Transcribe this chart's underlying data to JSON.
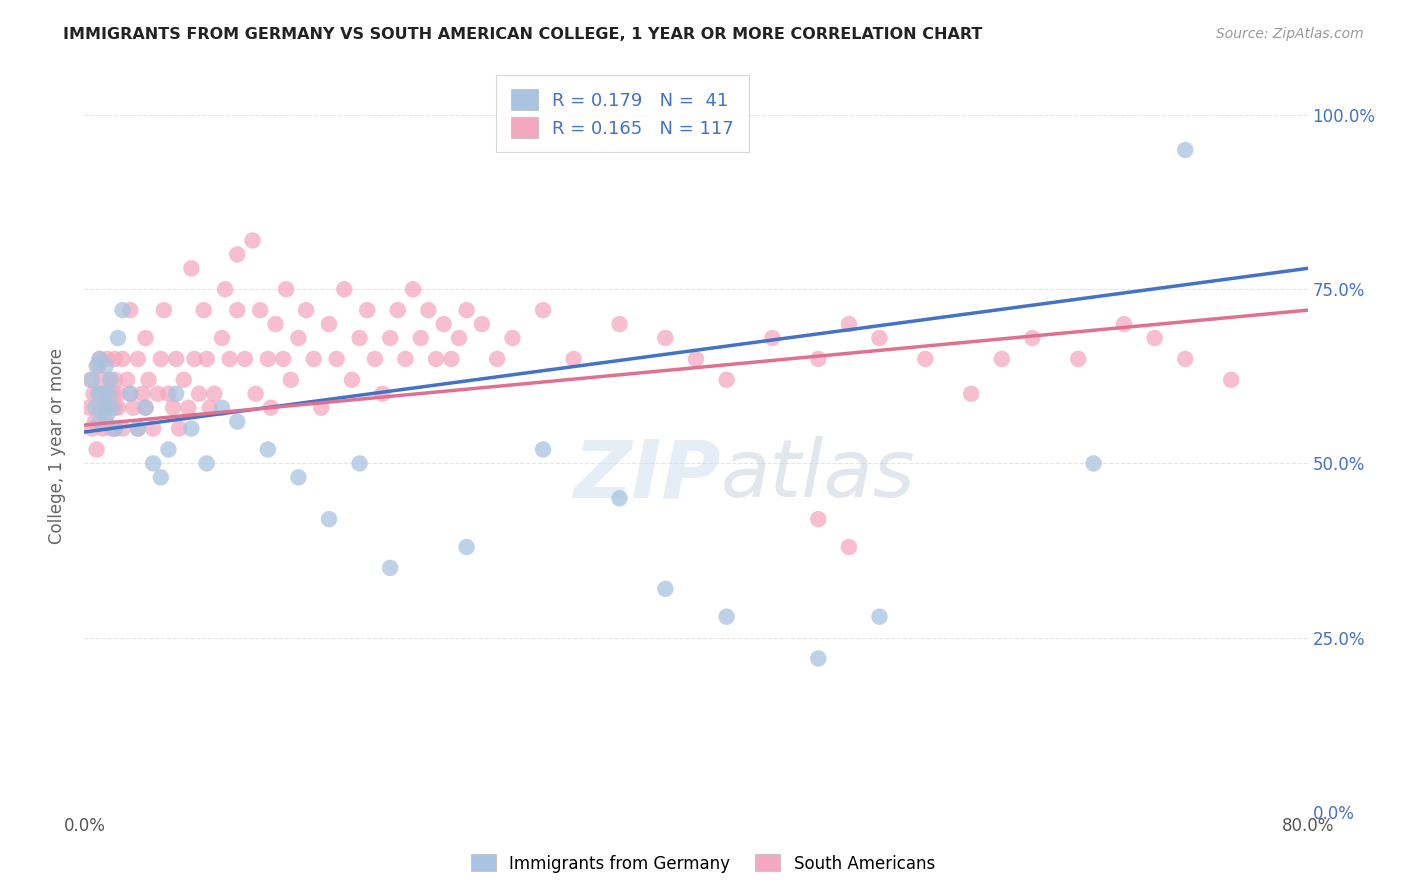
{
  "title": "IMMIGRANTS FROM GERMANY VS SOUTH AMERICAN COLLEGE, 1 YEAR OR MORE CORRELATION CHART",
  "source": "Source: ZipAtlas.com",
  "ylabel": "College, 1 year or more",
  "r_germany": 0.179,
  "n_germany": 41,
  "r_south_american": 0.165,
  "n_south_american": 117,
  "germany_color": "#a8c4e0",
  "south_american_color": "#f4a8c0",
  "germany_line_color": "#4472c4",
  "south_american_line_color": "#e07090",
  "background_color": "#ffffff",
  "xlim": [
    0.0,
    0.8
  ],
  "ylim": [
    0.0,
    1.05
  ],
  "germany_x": [
    0.005,
    0.007,
    0.008,
    0.009,
    0.01,
    0.01,
    0.012,
    0.013,
    0.014,
    0.015,
    0.016,
    0.017,
    0.018,
    0.02,
    0.022,
    0.025,
    0.03,
    0.035,
    0.04,
    0.045,
    0.05,
    0.055,
    0.06,
    0.07,
    0.08,
    0.09,
    0.1,
    0.12,
    0.14,
    0.16,
    0.18,
    0.2,
    0.25,
    0.3,
    0.35,
    0.38,
    0.42,
    0.48,
    0.52,
    0.66,
    0.72
  ],
  "germany_y": [
    0.62,
    0.58,
    0.64,
    0.6,
    0.56,
    0.65,
    0.6,
    0.58,
    0.64,
    0.57,
    0.6,
    0.62,
    0.58,
    0.55,
    0.68,
    0.72,
    0.6,
    0.55,
    0.58,
    0.5,
    0.48,
    0.52,
    0.6,
    0.55,
    0.5,
    0.58,
    0.56,
    0.52,
    0.48,
    0.42,
    0.5,
    0.35,
    0.38,
    0.52,
    0.45,
    0.32,
    0.28,
    0.22,
    0.28,
    0.5,
    0.95
  ],
  "south_american_x": [
    0.003,
    0.004,
    0.005,
    0.006,
    0.007,
    0.008,
    0.009,
    0.01,
    0.01,
    0.01,
    0.012,
    0.012,
    0.013,
    0.014,
    0.015,
    0.015,
    0.016,
    0.017,
    0.018,
    0.019,
    0.02,
    0.02,
    0.02,
    0.02,
    0.022,
    0.022,
    0.025,
    0.025,
    0.028,
    0.03,
    0.03,
    0.032,
    0.035,
    0.035,
    0.038,
    0.04,
    0.04,
    0.042,
    0.045,
    0.048,
    0.05,
    0.052,
    0.055,
    0.058,
    0.06,
    0.062,
    0.065,
    0.068,
    0.07,
    0.072,
    0.075,
    0.078,
    0.08,
    0.082,
    0.085,
    0.09,
    0.092,
    0.095,
    0.1,
    0.1,
    0.105,
    0.11,
    0.112,
    0.115,
    0.12,
    0.122,
    0.125,
    0.13,
    0.132,
    0.135,
    0.14,
    0.145,
    0.15,
    0.155,
    0.16,
    0.165,
    0.17,
    0.175,
    0.18,
    0.185,
    0.19,
    0.195,
    0.2,
    0.205,
    0.21,
    0.215,
    0.22,
    0.225,
    0.23,
    0.235,
    0.24,
    0.245,
    0.25,
    0.26,
    0.27,
    0.28,
    0.3,
    0.32,
    0.35,
    0.38,
    0.4,
    0.42,
    0.45,
    0.48,
    0.5,
    0.52,
    0.55,
    0.58,
    0.6,
    0.62,
    0.65,
    0.68,
    0.7,
    0.72,
    0.75,
    0.48,
    0.5
  ],
  "south_american_y": [
    0.58,
    0.62,
    0.55,
    0.6,
    0.56,
    0.52,
    0.64,
    0.58,
    0.65,
    0.6,
    0.55,
    0.62,
    0.58,
    0.56,
    0.6,
    0.65,
    0.58,
    0.62,
    0.55,
    0.6,
    0.58,
    0.65,
    0.55,
    0.62,
    0.6,
    0.58,
    0.65,
    0.55,
    0.62,
    0.6,
    0.72,
    0.58,
    0.65,
    0.55,
    0.6,
    0.68,
    0.58,
    0.62,
    0.55,
    0.6,
    0.65,
    0.72,
    0.6,
    0.58,
    0.65,
    0.55,
    0.62,
    0.58,
    0.78,
    0.65,
    0.6,
    0.72,
    0.65,
    0.58,
    0.6,
    0.68,
    0.75,
    0.65,
    0.8,
    0.72,
    0.65,
    0.82,
    0.6,
    0.72,
    0.65,
    0.58,
    0.7,
    0.65,
    0.75,
    0.62,
    0.68,
    0.72,
    0.65,
    0.58,
    0.7,
    0.65,
    0.75,
    0.62,
    0.68,
    0.72,
    0.65,
    0.6,
    0.68,
    0.72,
    0.65,
    0.75,
    0.68,
    0.72,
    0.65,
    0.7,
    0.65,
    0.68,
    0.72,
    0.7,
    0.65,
    0.68,
    0.72,
    0.65,
    0.7,
    0.68,
    0.65,
    0.62,
    0.68,
    0.65,
    0.7,
    0.68,
    0.65,
    0.6,
    0.65,
    0.68,
    0.65,
    0.7,
    0.68,
    0.65,
    0.62,
    0.42,
    0.38
  ]
}
